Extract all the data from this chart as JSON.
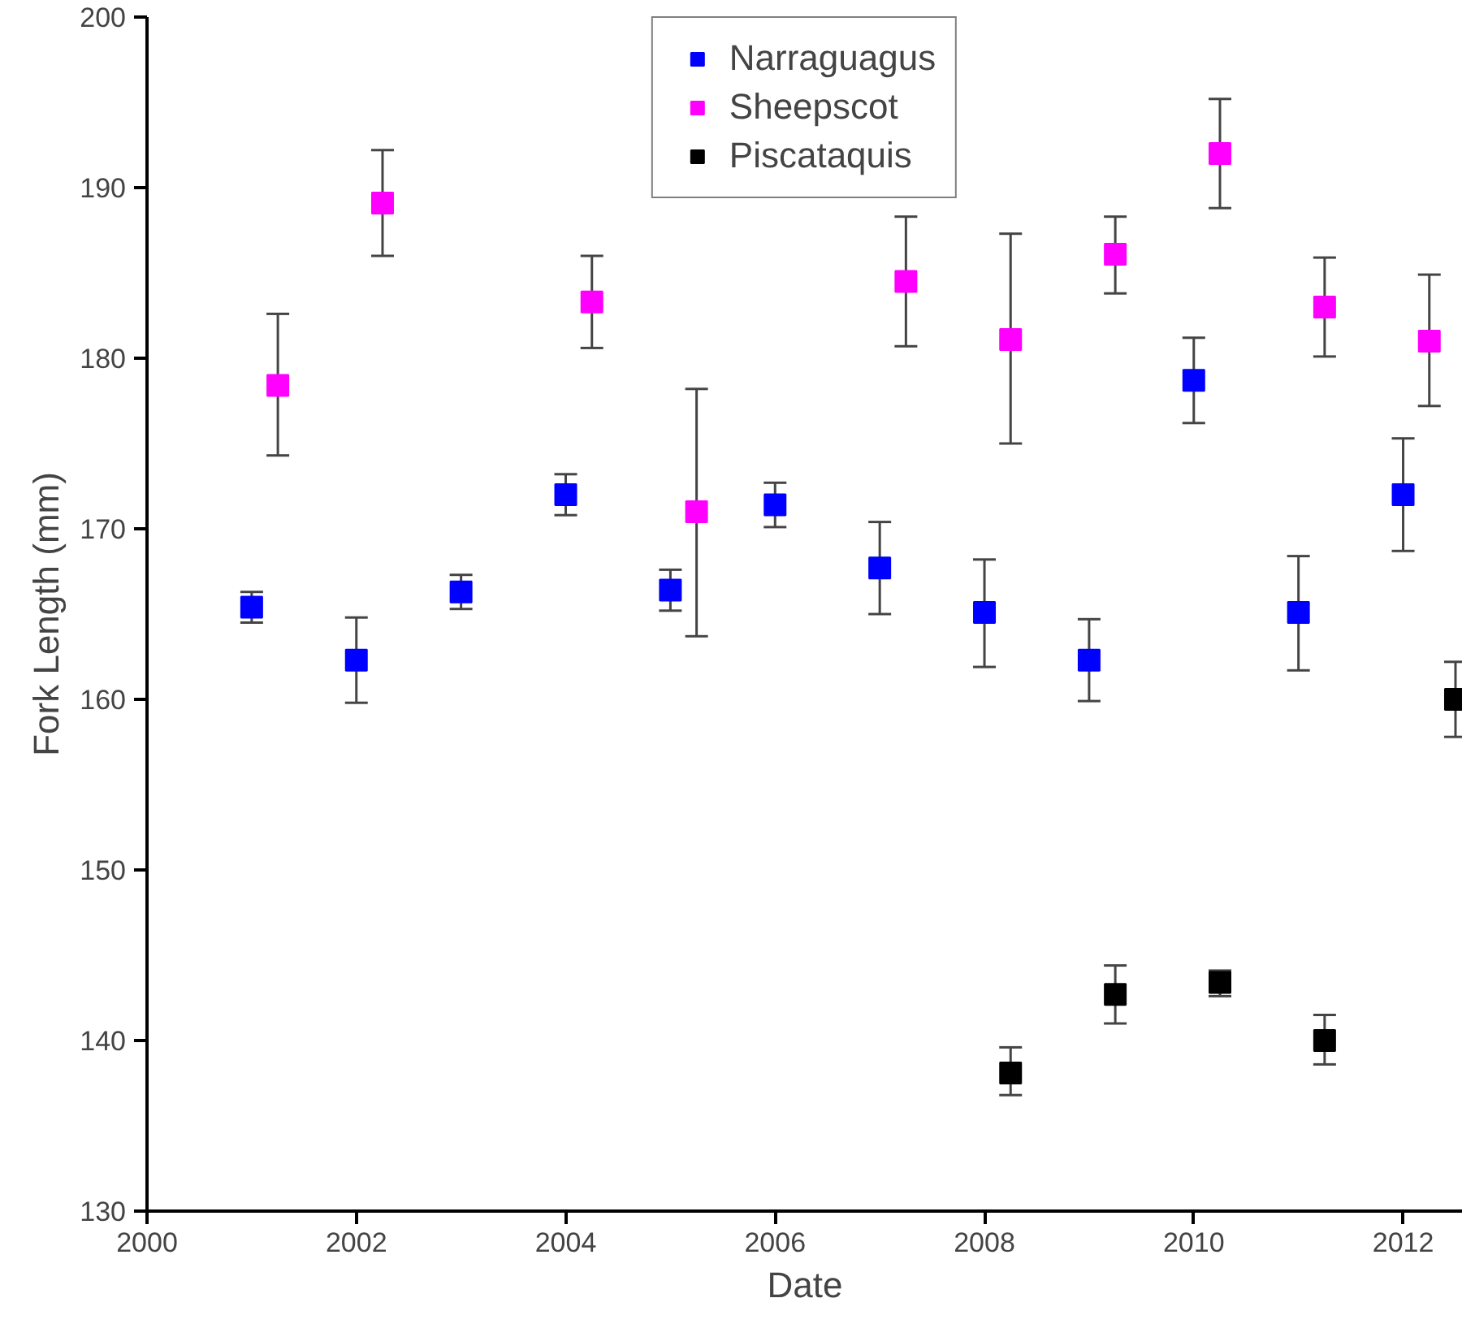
{
  "chart_data": {
    "type": "scatter",
    "xlabel": "Date",
    "ylabel": "Fork Length (mm)",
    "xlim": [
      2000,
      2012.57
    ],
    "xticks": [
      2000,
      2002,
      2004,
      2006,
      2008,
      2010,
      2012
    ],
    "ylim": [
      130,
      200
    ],
    "yticks": [
      130,
      140,
      150,
      160,
      170,
      180,
      190,
      200
    ],
    "marker": "square",
    "grid": false,
    "legend": "top",
    "series": [
      {
        "name": "Narraguagus",
        "color": "#0000ff",
        "x": [
          2001,
          2002,
          2003,
          2004,
          2005,
          2006,
          2007,
          2008,
          2009,
          2010,
          2011,
          2012
        ],
        "values": [
          165.4,
          162.3,
          166.3,
          172.0,
          166.4,
          171.4,
          167.7,
          165.1,
          162.3,
          178.7,
          165.1,
          172.0
        ],
        "errors": [
          [
            164.5,
            166.3
          ],
          [
            159.8,
            164.8
          ],
          [
            165.3,
            167.3
          ],
          [
            170.8,
            173.2
          ],
          [
            165.2,
            167.6
          ],
          [
            170.1,
            172.7
          ],
          [
            165.0,
            170.4
          ],
          [
            161.9,
            168.2
          ],
          [
            159.9,
            164.7
          ],
          [
            176.2,
            181.2
          ],
          [
            161.7,
            168.4
          ],
          [
            168.7,
            175.3
          ]
        ]
      },
      {
        "name": "Sheepscot",
        "color": "#ff00ff",
        "x": [
          2001.25,
          2002.25,
          2004.25,
          2005.25,
          2007.25,
          2008.25,
          2009.25,
          2010.25,
          2011.25,
          2012.25
        ],
        "values": [
          178.4,
          189.1,
          183.3,
          171.0,
          184.5,
          181.1,
          186.1,
          192.0,
          183.0,
          181.0
        ],
        "errors": [
          [
            174.3,
            182.6
          ],
          [
            186.0,
            192.2
          ],
          [
            180.6,
            186.0
          ],
          [
            163.7,
            178.2
          ],
          [
            180.7,
            188.3
          ],
          [
            175.0,
            187.3
          ],
          [
            183.8,
            188.3
          ],
          [
            188.8,
            195.2
          ],
          [
            180.1,
            185.9
          ],
          [
            177.2,
            184.9
          ]
        ]
      },
      {
        "name": "Piscataquis",
        "color": "#000000",
        "x": [
          2008.25,
          2009.25,
          2010.25,
          2011.25,
          2012.5
        ],
        "values": [
          138.1,
          142.7,
          143.4,
          140.0,
          160.0
        ],
        "errors": [
          [
            136.8,
            139.6
          ],
          [
            141.0,
            144.4
          ],
          [
            142.6,
            144.1
          ],
          [
            138.6,
            141.5
          ],
          [
            157.8,
            162.2
          ]
        ]
      }
    ]
  }
}
